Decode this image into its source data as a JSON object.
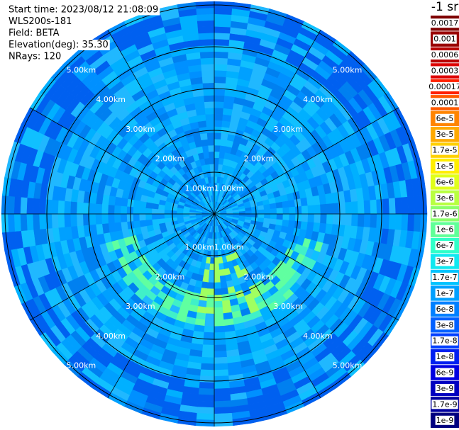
{
  "info": [
    "Start time: 2023/08/12 21:08:09",
    "WLS200s-181",
    "Field: BETA",
    "Elevation(deg): 35.30",
    "NRays: 120"
  ],
  "colorbar": {
    "title": "-1 sr",
    "items": [
      {
        "label": "0.0017",
        "color": "#7f0000"
      },
      {
        "label": "0.001",
        "color": "#990000"
      },
      {
        "label": "0.0006",
        "color": "#b80000"
      },
      {
        "label": "0.0003",
        "color": "#dd0000"
      },
      {
        "label": "0.00017",
        "color": "#ff2000"
      },
      {
        "label": "0.0001",
        "color": "#ff5a00"
      },
      {
        "label": "6e-5",
        "color": "#ff8400"
      },
      {
        "label": "3e-5",
        "color": "#ffaa00"
      },
      {
        "label": "1.7e-5",
        "color": "#ffd000"
      },
      {
        "label": "1e-5",
        "color": "#ffee00"
      },
      {
        "label": "6e-6",
        "color": "#e0ff1a"
      },
      {
        "label": "3e-6",
        "color": "#b8ff40"
      },
      {
        "label": "1.7e-6",
        "color": "#8cff6c"
      },
      {
        "label": "1e-6",
        "color": "#60ff98"
      },
      {
        "label": "6e-7",
        "color": "#30ffc8"
      },
      {
        "label": "3e-7",
        "color": "#10e8f0"
      },
      {
        "label": "1.7e-7",
        "color": "#00c4ff"
      },
      {
        "label": "1e-7",
        "color": "#00a0ff"
      },
      {
        "label": "6e-8",
        "color": "#0080ff"
      },
      {
        "label": "3e-8",
        "color": "#0060ff"
      },
      {
        "label": "1.7e-8",
        "color": "#0040ff"
      },
      {
        "label": "1e-8",
        "color": "#0020f0"
      },
      {
        "label": "6e-9",
        "color": "#0000e0"
      },
      {
        "label": "3e-9",
        "color": "#0000c0"
      },
      {
        "label": "1.7e-9",
        "color": "#00009f"
      },
      {
        "label": "1e-9",
        "color": "#000080"
      }
    ]
  },
  "rings": [
    "1.00km",
    "2.00km",
    "3.00km",
    "4.00km",
    "5.00km"
  ]
}
